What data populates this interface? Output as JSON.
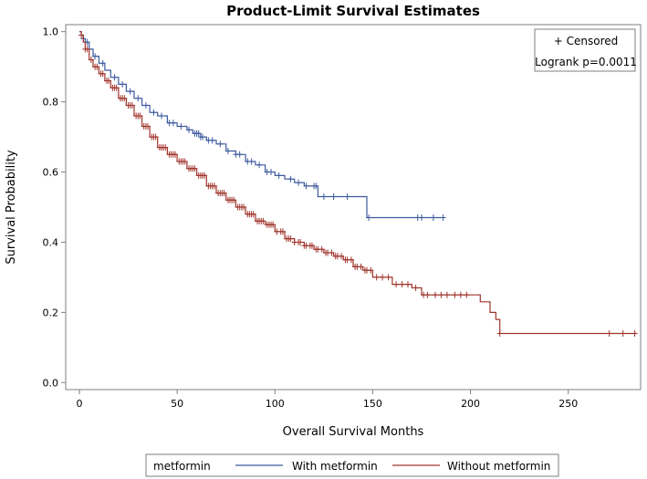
{
  "chart_data": {
    "type": "line",
    "subtype": "kaplan-meier-step",
    "title": "Product-Limit Survival Estimates",
    "xlabel": "Overall Survival Months",
    "ylabel": "Survival Probability",
    "xlim": [
      -7,
      287
    ],
    "ylim": [
      -0.02,
      1.02
    ],
    "xticks": [
      "0",
      "50",
      "100",
      "150",
      "200",
      "250"
    ],
    "xtick_values": [
      0,
      50,
      100,
      150,
      200,
      250
    ],
    "yticks": [
      "0.0",
      "0.2",
      "0.4",
      "0.6",
      "0.8",
      "1.0"
    ],
    "ytick_values": [
      0.0,
      0.2,
      0.4,
      0.6,
      0.8,
      1.0
    ],
    "inset": {
      "censored_label": "+ Censored",
      "pvalue_label": "Logrank p=0.0011"
    },
    "legend": {
      "title": "metformin",
      "position": "bottom"
    },
    "series": [
      {
        "name": "With metformin",
        "color": "#3d5a9e",
        "x": [
          0,
          1,
          2,
          3,
          5,
          7,
          10,
          13,
          16,
          20,
          24,
          28,
          32,
          36,
          40,
          45,
          50,
          55,
          58,
          62,
          65,
          70,
          75,
          80,
          85,
          90,
          95,
          100,
          105,
          110,
          115,
          120,
          122,
          125,
          130,
          140,
          147,
          150,
          160,
          175,
          186
        ],
        "y": [
          1.0,
          0.99,
          0.98,
          0.97,
          0.95,
          0.93,
          0.91,
          0.89,
          0.87,
          0.85,
          0.83,
          0.81,
          0.79,
          0.77,
          0.76,
          0.74,
          0.73,
          0.72,
          0.71,
          0.7,
          0.69,
          0.68,
          0.66,
          0.65,
          0.63,
          0.62,
          0.6,
          0.59,
          0.58,
          0.57,
          0.56,
          0.56,
          0.53,
          0.53,
          0.53,
          0.53,
          0.47,
          0.47,
          0.47,
          0.47,
          0.47
        ],
        "censored_x": [
          2,
          4,
          8,
          12,
          18,
          22,
          26,
          30,
          34,
          38,
          42,
          46,
          48,
          52,
          56,
          59,
          60,
          61,
          62,
          63,
          66,
          68,
          72,
          76,
          80,
          82,
          86,
          88,
          92,
          96,
          98,
          102,
          108,
          112,
          116,
          120,
          121,
          125,
          130,
          137,
          148,
          173,
          175,
          181,
          186
        ]
      },
      {
        "name": "Without metformin",
        "color": "#a0352c",
        "x": [
          0,
          1,
          2,
          3,
          5,
          7,
          10,
          13,
          16,
          20,
          24,
          28,
          32,
          36,
          40,
          45,
          50,
          55,
          60,
          65,
          70,
          75,
          80,
          85,
          90,
          95,
          100,
          105,
          110,
          115,
          120,
          125,
          130,
          135,
          140,
          145,
          150,
          160,
          170,
          175,
          200,
          205,
          210,
          213,
          215,
          220,
          240,
          260,
          285
        ],
        "y": [
          1.0,
          0.99,
          0.97,
          0.95,
          0.92,
          0.9,
          0.88,
          0.86,
          0.84,
          0.81,
          0.79,
          0.76,
          0.73,
          0.7,
          0.67,
          0.65,
          0.63,
          0.61,
          0.59,
          0.56,
          0.54,
          0.52,
          0.5,
          0.48,
          0.46,
          0.45,
          0.43,
          0.41,
          0.4,
          0.39,
          0.38,
          0.37,
          0.36,
          0.35,
          0.33,
          0.32,
          0.3,
          0.28,
          0.27,
          0.25,
          0.25,
          0.23,
          0.2,
          0.18,
          0.14,
          0.14,
          0.14,
          0.14,
          0.14
        ],
        "censored_x": [
          1,
          3,
          4,
          6,
          8,
          9,
          11,
          12,
          14,
          15,
          17,
          18,
          19,
          21,
          22,
          23,
          25,
          26,
          27,
          29,
          30,
          31,
          33,
          34,
          35,
          37,
          38,
          39,
          41,
          42,
          43,
          44,
          46,
          47,
          48,
          49,
          51,
          52,
          53,
          54,
          56,
          57,
          58,
          59,
          61,
          62,
          63,
          64,
          66,
          67,
          68,
          69,
          71,
          72,
          73,
          74,
          76,
          77,
          78,
          79,
          81,
          82,
          83,
          84,
          86,
          87,
          88,
          89,
          91,
          92,
          93,
          94,
          96,
          97,
          98,
          99,
          101,
          103,
          104,
          106,
          107,
          108,
          110,
          112,
          113,
          115,
          116,
          118,
          119,
          121,
          122,
          124,
          126,
          127,
          129,
          131,
          132,
          134,
          136,
          137,
          139,
          141,
          142,
          144,
          146,
          147,
          149,
          152,
          155,
          158,
          162,
          165,
          168,
          172,
          176,
          178,
          182,
          185,
          188,
          192,
          195,
          198,
          215,
          271,
          278,
          284
        ]
      }
    ]
  }
}
